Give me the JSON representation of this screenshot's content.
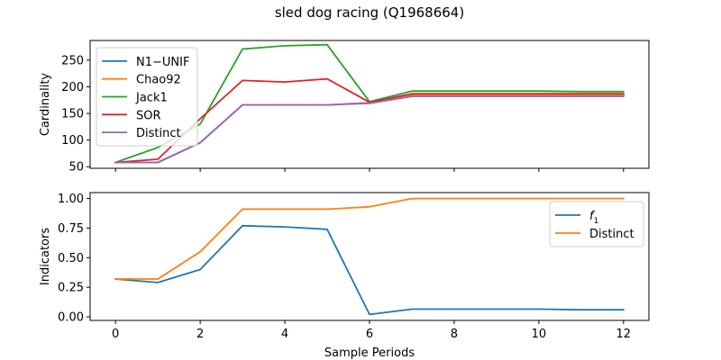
{
  "chart_data": [
    {
      "type": "line",
      "title": "sled dog racing (Q1968664)",
      "xlabel": "",
      "ylabel": "Cardinality",
      "xlim": [
        -0.6,
        12.6
      ],
      "ylim": [
        47,
        287
      ],
      "xticks": [
        0,
        2,
        4,
        6,
        8,
        10,
        12
      ],
      "yticks": [
        50,
        100,
        150,
        200,
        250
      ],
      "show_xtick_labels": false,
      "grid": false,
      "legend_position": "upper-left",
      "x": [
        0,
        1,
        2,
        3,
        4,
        5,
        6,
        7,
        8,
        9,
        10,
        11,
        12
      ],
      "series": [
        {
          "name": "N1−UNIF",
          "color": "#1f77b4",
          "values": [
            58,
            58,
            95,
            166,
            166,
            166,
            170,
            184,
            184,
            184,
            184,
            184,
            184
          ]
        },
        {
          "name": "Chao92",
          "color": "#ff7f0e",
          "values": [
            58,
            58,
            95,
            166,
            166,
            166,
            170,
            184,
            184,
            184,
            184,
            184,
            184
          ]
        },
        {
          "name": "Jack1",
          "color": "#2ca02c",
          "values": [
            58,
            86,
            130,
            271,
            277,
            279,
            172,
            192,
            192,
            192,
            192,
            191,
            191
          ]
        },
        {
          "name": "SOR",
          "color": "#d62728",
          "values": [
            58,
            64,
            140,
            212,
            209,
            215,
            171,
            187,
            187,
            187,
            187,
            187,
            187
          ]
        },
        {
          "name": "Distinct",
          "color": "#9467bd",
          "values": [
            58,
            58,
            95,
            166,
            166,
            166,
            169,
            182,
            182,
            182,
            182,
            182,
            182
          ]
        }
      ]
    },
    {
      "type": "line",
      "title": "",
      "xlabel": "Sample Periods",
      "ylabel": "Indicators",
      "xlim": [
        -0.6,
        12.6
      ],
      "ylim": [
        -0.03,
        1.05
      ],
      "xticks": [
        0,
        2,
        4,
        6,
        8,
        10,
        12
      ],
      "yticks": [
        0.0,
        0.25,
        0.5,
        0.75,
        1.0
      ],
      "ytick_labels": [
        "0.00",
        "0.25",
        "0.50",
        "0.75",
        "1.00"
      ],
      "show_xtick_labels": true,
      "grid": false,
      "legend_position": "upper-right",
      "x": [
        0,
        1,
        2,
        3,
        4,
        5,
        6,
        7,
        8,
        9,
        10,
        11,
        12
      ],
      "series": [
        {
          "name": "f1",
          "label_main": "f",
          "label_sub": "1",
          "color": "#1f77b4",
          "values": [
            0.32,
            0.29,
            0.4,
            0.77,
            0.76,
            0.74,
            0.02,
            0.065,
            0.065,
            0.065,
            0.065,
            0.06,
            0.06
          ]
        },
        {
          "name": "Distinct",
          "color": "#ff7f0e",
          "values": [
            0.32,
            0.32,
            0.55,
            0.91,
            0.91,
            0.91,
            0.93,
            1.0,
            1.0,
            1.0,
            1.0,
            1.0,
            1.0
          ]
        }
      ]
    }
  ]
}
